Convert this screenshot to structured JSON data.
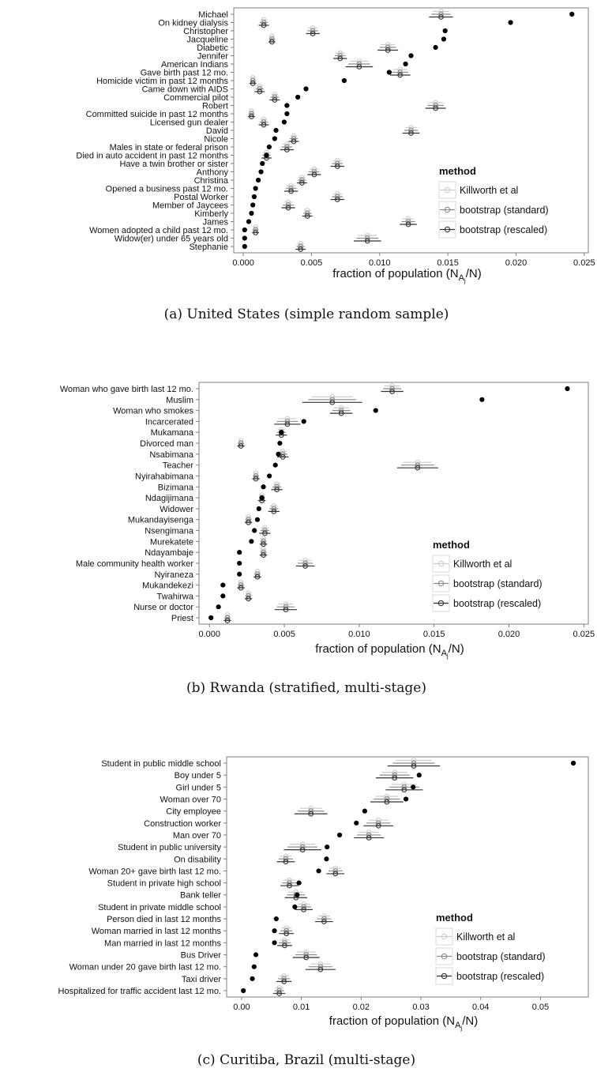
{
  "legend": {
    "title": "method",
    "entries": [
      "Killworth et al",
      "bootstrap (standard)",
      "bootstrap (rescaled)"
    ]
  },
  "colors": {
    "killworth": "#cccccc",
    "standard": "#8c8c8c",
    "rescaled": "#333333",
    "point": "#000000"
  },
  "chart_data": [
    {
      "type": "scatter",
      "caption": "(a)  United States (simple random sample)",
      "xlabel": "fraction of population (N",
      "xlabel_sub": "A",
      "xlabel_sub2": "j",
      "xlabel_end": "/N)",
      "xlim": [
        -0.0007,
        0.0253
      ],
      "xticks": [
        "0.000",
        "0.005",
        "0.010",
        "0.015",
        "0.020",
        "0.025"
      ],
      "xtick_values": [
        0,
        0.005,
        0.01,
        0.015,
        0.02,
        0.025
      ],
      "categories": [
        "Michael",
        "On kidney dialysis",
        "Christopher",
        "Jacqueline",
        "Diabetic",
        "Jennifer",
        "American Indians",
        "Gave birth past 12 mo.",
        "Homicide victim in past 12 months",
        "Came down with AIDS",
        "Commercial pilot",
        "Robert",
        "Committed suicide in past 12 months",
        "Licensed gun dealer",
        "David",
        "Nicole",
        "Males in state or federal prison",
        "Died in auto accident in past 12 months",
        "Have a twin brother or sister",
        "Anthony",
        "Christina",
        "Opened a business past 12 mo.",
        "Postal Worker",
        "Member of Jaycees",
        "Kimberly",
        "James",
        "Women adopted a child past 12 mo.",
        "Widow(er) under 65 years old",
        "Stephanie"
      ],
      "truth": [
        0.0241,
        0.0196,
        0.0148,
        0.0147,
        0.0141,
        0.0123,
        0.0119,
        0.0107,
        0.0074,
        0.0046,
        0.004,
        0.0032,
        0.0032,
        0.003,
        0.0024,
        0.0023,
        0.0019,
        0.0017,
        0.0014,
        0.0013,
        0.0011,
        0.0009,
        0.0008,
        0.0007,
        0.0006,
        0.0004,
        0.0001,
        0.0001,
        0.0001
      ],
      "estimate": [
        0.0145,
        0.0015,
        0.0051,
        0.0021,
        0.0106,
        0.0071,
        0.0085,
        0.0115,
        0.0007,
        0.0012,
        0.0023,
        0.0141,
        0.0006,
        0.0015,
        0.0123,
        0.0037,
        0.0032,
        0.0017,
        0.0069,
        0.0052,
        0.0043,
        0.0035,
        0.0069,
        0.0033,
        0.0047,
        0.0121,
        0.0009,
        0.0091,
        0.0042
      ],
      "halfwidth": [
        0.0007,
        0.0003,
        0.0004,
        0.0002,
        0.0006,
        0.0004,
        0.0008,
        0.0006,
        0.0002,
        0.0003,
        0.0003,
        0.0006,
        0.0002,
        0.0003,
        0.0005,
        0.0003,
        0.0004,
        0.0003,
        0.0004,
        0.0004,
        0.0003,
        0.0004,
        0.0004,
        0.0004,
        0.0003,
        0.0005,
        0.0002,
        0.0008,
        0.0003
      ]
    },
    {
      "type": "scatter",
      "caption": "(b)  Rwanda (stratified, multi-stage)",
      "xlabel": "fraction of population (N",
      "xlabel_sub": "A",
      "xlabel_sub2": "j",
      "xlabel_end": "/N)",
      "xlim": [
        -0.0007,
        0.0253
      ],
      "xticks": [
        "0.000",
        "0.005",
        "0.010",
        "0.015",
        "0.020",
        "0.025"
      ],
      "xtick_values": [
        0,
        0.005,
        0.01,
        0.015,
        0.02,
        0.025
      ],
      "categories": [
        "Woman who gave birth last 12 mo.",
        "Muslim",
        "Woman who smokes",
        "Incarcerated",
        "Mukamana",
        "Divorced man",
        "Nsabimana",
        "Teacher",
        "Nyirahabimana",
        "Bizimana",
        "Ndagijimana",
        "Widower",
        "Mukandayisenga",
        "Nsengimana",
        "Murekatete",
        "Ndayambaje",
        "Male community health worker",
        "Nyiraneza",
        "Mukandekezi",
        "Twahirwa",
        "Nurse or doctor",
        "Priest"
      ],
      "truth": [
        0.0239,
        0.0182,
        0.0111,
        0.0063,
        0.0048,
        0.0047,
        0.0046,
        0.0044,
        0.004,
        0.0036,
        0.0035,
        0.0033,
        0.0032,
        0.003,
        0.0028,
        0.002,
        0.002,
        0.002,
        0.0009,
        0.0009,
        0.0006,
        0.0001
      ],
      "estimate": [
        0.0122,
        0.0082,
        0.0088,
        0.0052,
        0.0048,
        0.0021,
        0.0049,
        0.0139,
        0.0031,
        0.0045,
        0.0035,
        0.0043,
        0.0026,
        0.0037,
        0.0036,
        0.0036,
        0.0064,
        0.0032,
        0.0021,
        0.0026,
        0.0051,
        0.0012
      ],
      "halfwidth": [
        0.0006,
        0.0016,
        0.0006,
        0.0007,
        0.0003,
        0.0002,
        0.0003,
        0.0011,
        0.0002,
        0.0003,
        0.0002,
        0.0003,
        0.0002,
        0.0003,
        0.0002,
        0.0002,
        0.0005,
        0.0002,
        0.0002,
        0.0002,
        0.0006,
        0.0002
      ]
    },
    {
      "type": "scatter",
      "caption": "(c)  Curitiba, Brazil (multi-stage)",
      "xlabel": "fraction of population (N",
      "xlabel_sub": "A",
      "xlabel_sub2": "j",
      "xlabel_end": "/N)",
      "xlim": [
        -0.0025,
        0.058
      ],
      "xticks": [
        "0.00",
        "0.01",
        "0.02",
        "0.03",
        "0.04",
        "0.05"
      ],
      "xtick_values": [
        0,
        0.01,
        0.02,
        0.03,
        0.04,
        0.05
      ],
      "categories": [
        "Student in public middle school",
        "Boy under 5",
        "Girl under 5",
        "Woman over 70",
        "City employee",
        "Construction worker",
        "Man over 70",
        "Student in public university",
        "On disability",
        "Woman 20+  gave birth last 12 mo.",
        "Student in private high school",
        "Bank teller",
        "Student in private middle school",
        "Person died in last 12 months",
        "Woman married in last 12 months",
        "Man married in last 12 months",
        "Bus Driver",
        "Woman under 20 gave birth last 12 mo.",
        "Taxi driver",
        "Hospitalized for traffic accident last 12 mo."
      ],
      "truth": [
        0.0555,
        0.0297,
        0.0287,
        0.0275,
        0.0206,
        0.0192,
        0.0164,
        0.0143,
        0.0142,
        0.0129,
        0.0096,
        0.0093,
        0.0089,
        0.0058,
        0.0055,
        0.0055,
        0.0024,
        0.0021,
        0.0018,
        0.0003
      ],
      "estimate": [
        0.0288,
        0.0256,
        0.0272,
        0.0243,
        0.0116,
        0.0229,
        0.0213,
        0.0102,
        0.0074,
        0.0157,
        0.008,
        0.0091,
        0.0104,
        0.0138,
        0.0075,
        0.0072,
        0.0108,
        0.0132,
        0.0071,
        0.0063
      ],
      "halfwidth": [
        0.0035,
        0.0025,
        0.0025,
        0.0022,
        0.0022,
        0.002,
        0.002,
        0.0025,
        0.0012,
        0.0012,
        0.0012,
        0.0015,
        0.0012,
        0.0012,
        0.001,
        0.001,
        0.0018,
        0.002,
        0.001,
        0.0008
      ]
    }
  ]
}
